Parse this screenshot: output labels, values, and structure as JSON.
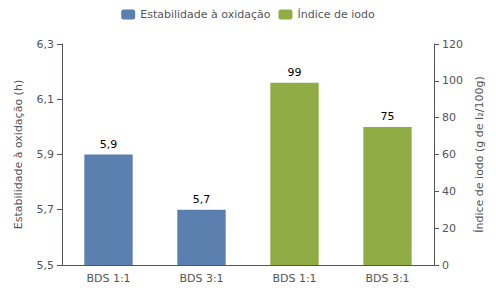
{
  "chart_data": {
    "type": "bar",
    "categories": [
      "BDS 1:1",
      "BDS 3:1",
      "BDS 1:1",
      "BDS 3:1"
    ],
    "series": [
      {
        "name": "Estabilidade à oxidação",
        "color": "#5b7fae",
        "values": [
          5.9,
          5.7,
          null,
          null
        ],
        "value_labels": [
          "5,9",
          "5,7",
          null,
          null
        ]
      },
      {
        "name": "Índice de iodo",
        "color": "#8fac45",
        "values": [
          null,
          null,
          99,
          75
        ],
        "axis": "y2"
      }
    ],
    "ylabel": "Estabilidade à oxidação (h)",
    "y2label": "Índice de iodo (g de I₂/100g)",
    "ylim": [
      5.5,
      6.3
    ],
    "yticks": [
      {
        "value": 5.5,
        "label": "5,5"
      },
      {
        "value": 5.7,
        "label": "5,7"
      },
      {
        "value": 5.9,
        "label": "5,9"
      },
      {
        "value": 6.1,
        "label": "6,1"
      },
      {
        "value": 6.3,
        "label": "6,3"
      }
    ],
    "y2lim": [
      0,
      120
    ],
    "y2ticks": [
      0,
      20,
      40,
      60,
      80,
      100,
      120
    ],
    "data_labels": true,
    "legend": "top",
    "grid": false
  }
}
